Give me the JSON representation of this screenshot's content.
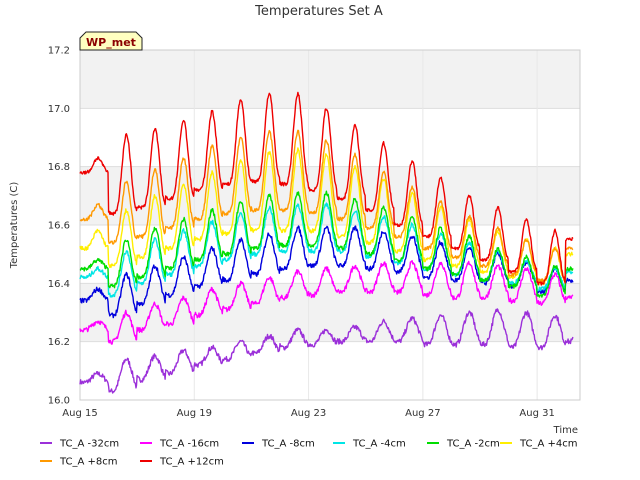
{
  "chart_data": {
    "type": "line",
    "title": "Temperatures Set A",
    "xlabel": "Time",
    "ylabel": "Temperatures (C)",
    "badge": "WP_met",
    "xlim": [
      "2023-08-15",
      "2023-09-01T12:00"
    ],
    "ylim": [
      16.0,
      17.2
    ],
    "yticks": [
      "16.0",
      "16.2",
      "16.4",
      "16.6",
      "16.8",
      "17.0",
      "17.2"
    ],
    "xticks": [
      {
        "label": "Aug 15",
        "date": "2023-08-15"
      },
      {
        "label": "Aug 19",
        "date": "2023-08-19"
      },
      {
        "label": "Aug 23",
        "date": "2023-08-23"
      },
      {
        "label": "Aug 27",
        "date": "2023-08-27"
      },
      {
        "label": "Aug 31",
        "date": "2023-08-31"
      }
    ],
    "grid": true,
    "legend_position": "bottom",
    "dates": [
      "2023-08-15",
      "2023-08-16",
      "2023-08-17",
      "2023-08-18",
      "2023-08-19",
      "2023-08-20",
      "2023-08-21",
      "2023-08-22",
      "2023-08-23",
      "2023-08-24",
      "2023-08-25",
      "2023-08-26",
      "2023-08-27",
      "2023-08-28",
      "2023-08-29",
      "2023-08-30",
      "2023-08-31",
      "2023-09-01"
    ],
    "series": [
      {
        "name": "TC_A -32cm",
        "color": "#9b30d9",
        "daily_min": [
          16.06,
          16.03,
          16.07,
          16.09,
          16.12,
          16.14,
          16.16,
          16.18,
          16.19,
          16.2,
          16.2,
          16.2,
          16.19,
          16.19,
          16.19,
          16.18,
          16.18,
          16.2
        ],
        "daily_max": [
          16.09,
          16.14,
          16.15,
          16.17,
          16.18,
          16.2,
          16.22,
          16.24,
          16.24,
          16.25,
          16.27,
          16.28,
          16.29,
          16.3,
          16.31,
          16.3,
          16.29,
          16.3
        ]
      },
      {
        "name": "TC_A -16cm",
        "color": "#ff00ff",
        "daily_min": [
          16.24,
          16.2,
          16.24,
          16.26,
          16.29,
          16.31,
          16.33,
          16.35,
          16.36,
          16.37,
          16.37,
          16.37,
          16.36,
          16.35,
          16.35,
          16.34,
          16.33,
          16.35
        ],
        "daily_max": [
          16.27,
          16.3,
          16.33,
          16.35,
          16.38,
          16.4,
          16.42,
          16.44,
          16.45,
          16.46,
          16.47,
          16.47,
          16.47,
          16.47,
          16.46,
          16.45,
          16.43,
          16.4
        ]
      },
      {
        "name": "TC_A -8cm",
        "color": "#0000dd",
        "daily_min": [
          16.34,
          16.29,
          16.33,
          16.36,
          16.39,
          16.41,
          16.43,
          16.45,
          16.46,
          16.46,
          16.45,
          16.44,
          16.42,
          16.41,
          16.4,
          16.39,
          16.37,
          16.41
        ],
        "daily_max": [
          16.38,
          16.43,
          16.46,
          16.49,
          16.52,
          16.55,
          16.57,
          16.59,
          16.59,
          16.59,
          16.58,
          16.56,
          16.54,
          16.52,
          16.5,
          16.47,
          16.45,
          16.43
        ]
      },
      {
        "name": "TC_A -4cm",
        "color": "#00e5e5",
        "daily_min": [
          16.42,
          16.36,
          16.4,
          16.43,
          16.46,
          16.48,
          16.5,
          16.51,
          16.51,
          16.51,
          16.49,
          16.47,
          16.45,
          16.43,
          16.41,
          16.4,
          16.38,
          16.44
        ],
        "daily_max": [
          16.45,
          16.51,
          16.55,
          16.58,
          16.61,
          16.64,
          16.66,
          16.67,
          16.67,
          16.65,
          16.63,
          16.6,
          16.57,
          16.54,
          16.51,
          16.48,
          16.45,
          16.45
        ]
      },
      {
        "name": "TC_A -2cm",
        "color": "#00dd00",
        "daily_min": [
          16.45,
          16.39,
          16.42,
          16.45,
          16.48,
          16.5,
          16.52,
          16.53,
          16.53,
          16.52,
          16.5,
          16.48,
          16.45,
          16.43,
          16.41,
          16.39,
          16.36,
          16.45
        ],
        "daily_max": [
          16.48,
          16.55,
          16.59,
          16.62,
          16.65,
          16.68,
          16.7,
          16.71,
          16.71,
          16.69,
          16.66,
          16.63,
          16.59,
          16.56,
          16.52,
          16.49,
          16.46,
          16.48
        ]
      },
      {
        "name": "TC_A +4cm",
        "color": "#ffee00",
        "daily_min": [
          16.52,
          16.46,
          16.49,
          16.52,
          16.55,
          16.57,
          16.58,
          16.58,
          16.58,
          16.56,
          16.54,
          16.51,
          16.48,
          16.46,
          16.44,
          16.42,
          16.4,
          16.5
        ],
        "daily_max": [
          16.58,
          16.65,
          16.7,
          16.74,
          16.78,
          16.82,
          16.85,
          16.86,
          16.84,
          16.8,
          16.76,
          16.71,
          16.66,
          16.62,
          16.58,
          16.55,
          16.52,
          16.55
        ]
      },
      {
        "name": "TC_A +8cm",
        "color": "#ff9900",
        "daily_min": [
          16.62,
          16.54,
          16.56,
          16.59,
          16.62,
          16.64,
          16.65,
          16.65,
          16.64,
          16.62,
          16.59,
          16.56,
          16.52,
          16.49,
          16.46,
          16.43,
          16.41,
          16.52
        ],
        "daily_max": [
          16.67,
          16.75,
          16.79,
          16.83,
          16.87,
          16.9,
          16.92,
          16.92,
          16.89,
          16.84,
          16.78,
          16.73,
          16.68,
          16.63,
          16.59,
          16.55,
          16.52,
          16.58
        ]
      },
      {
        "name": "TC_A +12cm",
        "color": "#ee0000",
        "daily_min": [
          16.78,
          16.64,
          16.66,
          16.69,
          16.72,
          16.74,
          16.75,
          16.74,
          16.72,
          16.69,
          16.65,
          16.6,
          16.56,
          16.52,
          16.48,
          16.44,
          16.4,
          16.55
        ],
        "daily_max": [
          16.83,
          16.91,
          16.93,
          16.96,
          16.99,
          17.03,
          17.05,
          17.05,
          17.0,
          16.94,
          16.88,
          16.82,
          16.76,
          16.7,
          16.66,
          16.62,
          16.58,
          16.66
        ]
      }
    ]
  }
}
